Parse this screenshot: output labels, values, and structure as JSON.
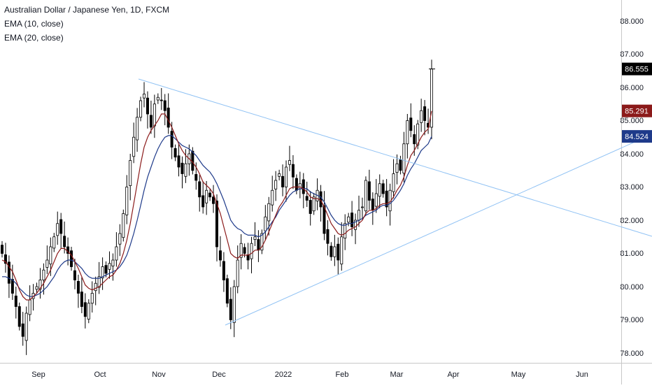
{
  "legend": {
    "title": "Australian Dollar / Japanese Yen, 1D, FXCM",
    "ema1": "EMA (10, close)",
    "ema2": "EMA (20, close)"
  },
  "colors": {
    "up": "#ffffff",
    "down": "#000000",
    "wick": "#000000",
    "ema10": "#8b1a1a",
    "ema20": "#1e3a8a",
    "trendline": "#90c2f4",
    "grid_border": "#c8c8c8",
    "axis_text": "#131722"
  },
  "chart_data": {
    "type": "candlestick",
    "symbol": "AUDJPY",
    "timeframe": "1D",
    "x_axis": [
      "Sep",
      "Oct",
      "Nov",
      "Dec",
      "2022",
      "Feb",
      "Mar",
      "Apr",
      "May",
      "Jun"
    ],
    "y_ticks": [
      "78.000",
      "79.000",
      "80.000",
      "81.000",
      "82.000",
      "83.000",
      "84.000",
      "85.000",
      "86.000",
      "87.000",
      "88.000"
    ],
    "ylim": [
      77.8,
      88.3
    ],
    "price_labels": [
      {
        "label": "86.555",
        "value": 86.555,
        "color": "#000000"
      },
      {
        "label": "85.291",
        "value": 85.291,
        "color": "#8b1a1a"
      },
      {
        "label": "84.524",
        "value": 84.524,
        "color": "#1e3a8a"
      }
    ],
    "closes": [
      81.0,
      80.7,
      80.1,
      79.8,
      79.4,
      78.8,
      78.5,
      79.2,
      79.6,
      79.8,
      80.0,
      80.2,
      80.5,
      80.8,
      81.2,
      81.5,
      81.9,
      81.6,
      81.2,
      81.0,
      80.6,
      80.2,
      79.8,
      79.4,
      79.1,
      79.5,
      79.8,
      80.1,
      80.3,
      80.6,
      80.4,
      80.7,
      80.8,
      81.2,
      81.6,
      82.2,
      83.0,
      83.8,
      84.5,
      85.1,
      85.6,
      85.8,
      85.2,
      84.8,
      85.5,
      85.7,
      85.6,
      85.3,
      84.8,
      84.2,
      83.9,
      83.6,
      83.4,
      83.7,
      84.0,
      83.5,
      83.2,
      82.7,
      82.4,
      82.9,
      82.7,
      82.5,
      81.2,
      80.8,
      80.2,
      79.5,
      79.0,
      80.0,
      80.8,
      81.3,
      81.0,
      80.8,
      81.3,
      81.5,
      81.1,
      81.6,
      82.1,
      82.5,
      82.9,
      83.2,
      83.4,
      83.0,
      83.6,
      83.8,
      83.3,
      82.9,
      83.1,
      82.8,
      82.6,
      82.2,
      82.7,
      82.9,
      82.4,
      81.6,
      81.3,
      80.9,
      81.2,
      80.8,
      81.5,
      81.9,
      82.1,
      81.8,
      82.0,
      82.3,
      82.4,
      83.2,
      82.6,
      82.3,
      82.8,
      83.1,
      82.8,
      82.4,
      82.9,
      83.4,
      83.7,
      83.5,
      84.3,
      85.0,
      84.7,
      84.3,
      84.9,
      85.3,
      85.0,
      84.8,
      86.555
    ],
    "ema10": [
      80.8,
      80.75,
      80.6,
      80.45,
      80.2,
      79.9,
      79.7,
      79.6,
      79.6,
      79.7,
      79.8,
      79.95,
      80.1,
      80.3,
      80.5,
      80.75,
      81.0,
      81.15,
      81.15,
      81.05,
      80.95,
      80.75,
      80.55,
      80.3,
      80.05,
      79.95,
      79.9,
      79.95,
      80.0,
      80.1,
      80.2,
      80.3,
      80.35,
      80.5,
      80.7,
      81.0,
      81.4,
      81.9,
      82.5,
      83.1,
      83.7,
      84.2,
      84.5,
      84.7,
      84.85,
      85.0,
      85.2,
      85.2,
      85.0,
      84.8,
      84.55,
      84.3,
      84.1,
      83.95,
      83.85,
      83.75,
      83.6,
      83.4,
      83.15,
      83.05,
      82.95,
      82.8,
      82.5,
      82.2,
      81.8,
      81.4,
      81.0,
      80.9,
      80.85,
      80.95,
      80.95,
      80.95,
      81.0,
      81.1,
      81.1,
      81.2,
      81.4,
      81.65,
      81.9,
      82.15,
      82.4,
      82.55,
      82.75,
      82.95,
      83.0,
      83.0,
      83.0,
      82.95,
      82.85,
      82.7,
      82.65,
      82.65,
      82.6,
      82.4,
      82.15,
      81.9,
      81.75,
      81.6,
      81.55,
      81.6,
      81.7,
      81.75,
      81.8,
      81.9,
      82.0,
      82.2,
      82.3,
      82.3,
      82.35,
      82.45,
      82.5,
      82.5,
      82.55,
      82.7,
      82.9,
      83.05,
      83.3,
      83.65,
      83.95,
      84.1,
      84.3,
      84.5,
      84.65,
      84.75,
      85.291
    ],
    "ema20": [
      80.3,
      80.3,
      80.25,
      80.2,
      80.1,
      79.95,
      79.85,
      79.75,
      79.7,
      79.7,
      79.75,
      79.8,
      79.9,
      80.0,
      80.15,
      80.3,
      80.5,
      80.65,
      80.75,
      80.8,
      80.8,
      80.75,
      80.65,
      80.55,
      80.4,
      80.3,
      80.25,
      80.25,
      80.25,
      80.3,
      80.35,
      80.4,
      80.45,
      80.5,
      80.6,
      80.75,
      80.95,
      81.25,
      81.6,
      82.0,
      82.45,
      82.9,
      83.3,
      83.6,
      83.9,
      84.15,
      84.35,
      84.5,
      84.55,
      84.55,
      84.45,
      84.35,
      84.25,
      84.2,
      84.15,
      84.05,
      83.95,
      83.8,
      83.65,
      83.55,
      83.45,
      83.3,
      83.1,
      82.85,
      82.6,
      82.3,
      82.0,
      81.85,
      81.75,
      81.7,
      81.6,
      81.55,
      81.55,
      81.55,
      81.5,
      81.55,
      81.65,
      81.8,
      81.95,
      82.1,
      82.3,
      82.45,
      82.6,
      82.75,
      82.85,
      82.9,
      82.95,
      82.95,
      82.95,
      82.85,
      82.8,
      82.75,
      82.7,
      82.55,
      82.35,
      82.15,
      82.0,
      81.9,
      81.85,
      81.85,
      81.9,
      81.9,
      81.95,
      82.0,
      82.05,
      82.15,
      82.2,
      82.25,
      82.3,
      82.4,
      82.45,
      82.45,
      82.5,
      82.6,
      82.75,
      82.9,
      83.1,
      83.35,
      83.55,
      83.7,
      83.9,
      84.1,
      84.2,
      84.3,
      84.524
    ]
  }
}
